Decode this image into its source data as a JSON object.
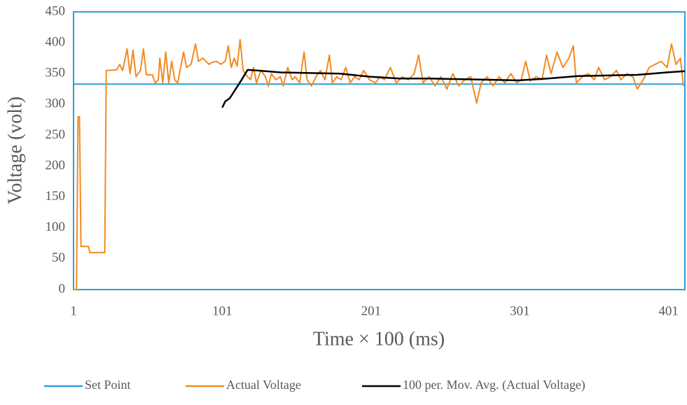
{
  "chart_data": {
    "type": "line",
    "xlabel": "Time × 100 (ms)",
    "ylabel": "Voltage (volt)",
    "xlim": [
      1,
      412
    ],
    "xticks": [
      1,
      101,
      201,
      301,
      401
    ],
    "ylim": [
      0,
      450
    ],
    "yticks": [
      0,
      50,
      100,
      150,
      200,
      250,
      300,
      350,
      400,
      450
    ],
    "legend": "bottom",
    "series": [
      {
        "name": "Set Point",
        "color": "#2e9fd6",
        "x": [
          1,
          412
        ],
        "values": [
          333,
          333
        ]
      },
      {
        "name": "Actual Voltage",
        "color": "#f28a21",
        "x": [
          1,
          3,
          4,
          5,
          6,
          11,
          12,
          22,
          23,
          30,
          32,
          34,
          37,
          39,
          41,
          43,
          46,
          48,
          50,
          54,
          56,
          58,
          59,
          61,
          63,
          65,
          67,
          69,
          71,
          73,
          75,
          77,
          80,
          83,
          85,
          88,
          92,
          94,
          97,
          100,
          103,
          105,
          107,
          109,
          111,
          113,
          115,
          118,
          120,
          122,
          124,
          127,
          130,
          132,
          134,
          137,
          140,
          142,
          145,
          148,
          150,
          153,
          156,
          158,
          161,
          164,
          167,
          170,
          173,
          175,
          178,
          181,
          184,
          187,
          190,
          193,
          196,
          200,
          204,
          207,
          210,
          214,
          218,
          222,
          226,
          230,
          233,
          236,
          240,
          244,
          248,
          252,
          256,
          260,
          264,
          268,
          272,
          275,
          279,
          283,
          287,
          291,
          295,
          299,
          302,
          305,
          308,
          312,
          316,
          319,
          322,
          326,
          330,
          334,
          337,
          339,
          343,
          347,
          351,
          354,
          358,
          362,
          366,
          369,
          373,
          377,
          380,
          384,
          388,
          392,
          396,
          400,
          403,
          406,
          409,
          411
        ],
        "values": [
          0,
          0,
          280,
          280,
          70,
          70,
          60,
          60,
          355,
          356,
          365,
          355,
          390,
          350,
          388,
          345,
          355,
          390,
          348,
          348,
          335,
          340,
          375,
          335,
          385,
          335,
          370,
          340,
          335,
          360,
          385,
          360,
          365,
          398,
          370,
          375,
          365,
          368,
          370,
          365,
          370,
          395,
          360,
          375,
          362,
          405,
          355,
          345,
          340,
          360,
          335,
          355,
          345,
          330,
          350,
          340,
          345,
          330,
          360,
          340,
          345,
          335,
          385,
          340,
          330,
          345,
          355,
          340,
          380,
          335,
          345,
          340,
          360,
          335,
          345,
          340,
          355,
          340,
          335,
          345,
          340,
          360,
          335,
          345,
          340,
          350,
          380,
          335,
          345,
          330,
          345,
          325,
          350,
          330,
          340,
          345,
          302,
          335,
          345,
          330,
          345,
          335,
          350,
          335,
          340,
          370,
          338,
          345,
          340,
          380,
          350,
          385,
          360,
          375,
          395,
          335,
          345,
          350,
          340,
          360,
          340,
          345,
          355,
          340,
          350,
          345,
          325,
          340,
          360,
          365,
          370,
          360,
          398,
          365,
          375,
          330
        ]
      },
      {
        "name": "100 per. Mov. Avg. (Actual Voltage)",
        "color": "#000000",
        "x": [
          101,
          103,
          106,
          110,
          114,
          118,
          125,
          140,
          160,
          180,
          200,
          220,
          240,
          260,
          280,
          300,
          320,
          340,
          360,
          380,
          400,
          412
        ],
        "values": [
          295,
          305,
          310,
          325,
          340,
          356,
          355,
          352,
          351,
          350,
          345,
          342,
          342,
          341,
          340,
          339,
          342,
          346,
          347,
          348,
          352,
          354
        ]
      }
    ]
  }
}
